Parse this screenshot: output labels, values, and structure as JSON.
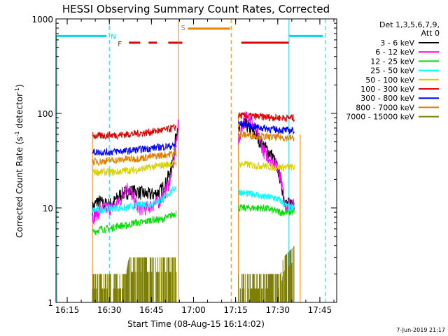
{
  "chart_data": {
    "type": "line",
    "title": "HESSI Observing Summary Count Rates, Corrected",
    "xlabel": "Start Time (08-Aug-15 16:14:02)",
    "ylabel_main": "Corrected Count Rate (s",
    "ylabel_sup1": "-1",
    "ylabel_mid": " detector",
    "ylabel_sup2": "-1",
    "ylabel_end": ")",
    "y_scale": "log",
    "ylim": [
      1,
      1000
    ],
    "xlim": [
      "16:11",
      "17:51"
    ],
    "x_ticks": [
      "16:15",
      "16:30",
      "16:45",
      "17:00",
      "17:15",
      "17:30",
      "17:45"
    ],
    "y_ticks": [
      "1",
      "10",
      "100",
      "1000"
    ],
    "legend_header": [
      "Det 1,3,5,6,7,9,",
      "Att 0"
    ],
    "legend_position": "right",
    "timestamp": "7-Jun-2019 21:17",
    "flags": {
      "n_label": "N",
      "f_label": "F",
      "s_label": "S",
      "night_color": "#00d8e8",
      "flare_color": "#e00000",
      "saa_color": "#f08000"
    },
    "series": [
      {
        "name": "3 - 6 keV",
        "color": "#000000",
        "points": [
          [
            "16:24",
            10
          ],
          [
            "16:26",
            12
          ],
          [
            "16:28",
            11
          ],
          [
            "16:31",
            11
          ],
          [
            "16:34",
            14
          ],
          [
            "16:37",
            15
          ],
          [
            "16:40",
            15
          ],
          [
            "16:43",
            14
          ],
          [
            "16:46",
            14
          ],
          [
            "16:48",
            15
          ],
          [
            "16:50",
            18
          ],
          [
            "16:52",
            26
          ],
          [
            "16:53",
            38
          ],
          [
            "16:54",
            70
          ],
          [
            "16:54.5",
            75
          ]
        ],
        "points2": [
          [
            "17:16",
            62
          ],
          [
            "17:17",
            72
          ],
          [
            "17:18",
            78
          ],
          [
            "17:20",
            70
          ],
          [
            "17:22",
            60
          ],
          [
            "17:24",
            50
          ],
          [
            "17:26",
            42
          ],
          [
            "17:28",
            36
          ],
          [
            "17:30",
            26
          ],
          [
            "17:31",
            20
          ],
          [
            "17:32",
            14
          ],
          [
            "17:33",
            11
          ],
          [
            "17:34",
            11
          ],
          [
            "17:36",
            12
          ]
        ]
      },
      {
        "name": "6 - 12 keV",
        "color": "#ff00ff",
        "points": [
          [
            "16:24",
            8
          ],
          [
            "16:26",
            9
          ],
          [
            "16:28",
            10
          ],
          [
            "16:31",
            10
          ],
          [
            "16:34",
            12
          ],
          [
            "16:36",
            17
          ],
          [
            "16:38",
            14
          ],
          [
            "16:40",
            10
          ],
          [
            "16:43",
            10
          ],
          [
            "16:46",
            11
          ],
          [
            "16:48",
            12
          ],
          [
            "16:50",
            15
          ],
          [
            "16:52",
            22
          ],
          [
            "16:53",
            32
          ],
          [
            "16:54",
            55
          ],
          [
            "16:54.5",
            78
          ]
        ],
        "points2": [
          [
            "17:16",
            50
          ],
          [
            "17:17",
            70
          ],
          [
            "17:19",
            100
          ],
          [
            "17:21",
            80
          ],
          [
            "17:23",
            58
          ],
          [
            "17:25",
            40
          ],
          [
            "17:27",
            34
          ],
          [
            "17:29",
            30
          ],
          [
            "17:31",
            22
          ],
          [
            "17:32",
            14
          ],
          [
            "17:33",
            10
          ],
          [
            "17:34",
            11
          ],
          [
            "17:36",
            11
          ]
        ]
      },
      {
        "name": "12 - 25 keV",
        "color": "#00e000",
        "points": [
          [
            "16:24",
            5.5
          ],
          [
            "16:27",
            6
          ],
          [
            "16:30",
            6
          ],
          [
            "16:33",
            6.5
          ],
          [
            "16:36",
            6.5
          ],
          [
            "16:39",
            7
          ],
          [
            "16:42",
            7
          ],
          [
            "16:45",
            7.5
          ],
          [
            "16:48",
            7.5
          ],
          [
            "16:51",
            8
          ],
          [
            "16:54",
            9
          ]
        ],
        "points2": [
          [
            "17:16",
            10
          ],
          [
            "17:19",
            10
          ],
          [
            "17:22",
            10
          ],
          [
            "17:25",
            10
          ],
          [
            "17:28",
            9.5
          ],
          [
            "17:31",
            9
          ],
          [
            "17:34",
            9
          ],
          [
            "17:36",
            9
          ]
        ]
      },
      {
        "name": "25 - 50 keV",
        "color": "#00ffff",
        "points": [
          [
            "16:24",
            9.5
          ],
          [
            "16:27",
            9.5
          ],
          [
            "16:30",
            10
          ],
          [
            "16:33",
            10
          ],
          [
            "16:36",
            10
          ],
          [
            "16:39",
            10.5
          ],
          [
            "16:42",
            11
          ],
          [
            "16:45",
            11
          ],
          [
            "16:48",
            12
          ],
          [
            "16:50",
            13
          ],
          [
            "16:52",
            15
          ],
          [
            "16:54",
            17
          ]
        ],
        "points2": [
          [
            "17:16",
            15
          ],
          [
            "17:19",
            14
          ],
          [
            "17:22",
            14
          ],
          [
            "17:25",
            13
          ],
          [
            "17:28",
            13
          ],
          [
            "17:31",
            12
          ],
          [
            "17:33",
            10.5
          ],
          [
            "17:34",
            10
          ],
          [
            "17:36",
            10
          ]
        ]
      },
      {
        "name": "50 - 100 keV",
        "color": "#d8d000",
        "points": [
          [
            "16:24",
            24
          ],
          [
            "16:27",
            24
          ],
          [
            "16:30",
            24
          ],
          [
            "16:33",
            24
          ],
          [
            "16:36",
            25
          ],
          [
            "16:39",
            25
          ],
          [
            "16:42",
            26
          ],
          [
            "16:45",
            27
          ],
          [
            "16:48",
            28
          ],
          [
            "16:51",
            29
          ],
          [
            "16:54",
            30
          ]
        ],
        "points2": [
          [
            "17:16",
            29
          ],
          [
            "17:19",
            29
          ],
          [
            "17:22",
            28
          ],
          [
            "17:25",
            28
          ],
          [
            "17:28",
            27
          ],
          [
            "17:31",
            27
          ],
          [
            "17:34",
            27
          ],
          [
            "17:36",
            27
          ]
        ]
      },
      {
        "name": "100 - 300 keV",
        "color": "#e00000",
        "points": [
          [
            "16:24",
            58
          ],
          [
            "16:27",
            58
          ],
          [
            "16:30",
            59
          ],
          [
            "16:33",
            59
          ],
          [
            "16:36",
            60
          ],
          [
            "16:39",
            61
          ],
          [
            "16:42",
            62
          ],
          [
            "16:45",
            64
          ],
          [
            "16:48",
            66
          ],
          [
            "16:51",
            68
          ],
          [
            "16:54",
            72
          ]
        ],
        "points2": [
          [
            "17:16",
            95
          ],
          [
            "17:19",
            94
          ],
          [
            "17:22",
            93
          ],
          [
            "17:25",
            92
          ],
          [
            "17:28",
            91
          ],
          [
            "17:31",
            90
          ],
          [
            "17:34",
            90
          ],
          [
            "17:36",
            90
          ]
        ]
      },
      {
        "name": "300 - 800 keV",
        "color": "#0000ff",
        "points": [
          [
            "16:24",
            39
          ],
          [
            "16:27",
            39
          ],
          [
            "16:30",
            39
          ],
          [
            "16:33",
            40
          ],
          [
            "16:36",
            40
          ],
          [
            "16:39",
            41
          ],
          [
            "16:42",
            42
          ],
          [
            "16:45",
            43
          ],
          [
            "16:48",
            44
          ],
          [
            "16:51",
            45
          ],
          [
            "16:54",
            46
          ]
        ],
        "points2": [
          [
            "17:16",
            78
          ],
          [
            "17:19",
            76
          ],
          [
            "17:22",
            72
          ],
          [
            "17:25",
            70
          ],
          [
            "17:28",
            68
          ],
          [
            "17:31",
            67
          ],
          [
            "17:34",
            66
          ],
          [
            "17:36",
            66
          ]
        ]
      },
      {
        "name": "800 - 7000 keV",
        "color": "#e08000",
        "points": [
          [
            "16:24",
            31
          ],
          [
            "16:27",
            31
          ],
          [
            "16:30",
            32
          ],
          [
            "16:33",
            32
          ],
          [
            "16:36",
            33
          ],
          [
            "16:39",
            33
          ],
          [
            "16:42",
            34
          ],
          [
            "16:45",
            35
          ],
          [
            "16:48",
            36
          ],
          [
            "16:51",
            37
          ],
          [
            "16:54",
            38
          ]
        ],
        "points2": [
          [
            "17:16",
            60
          ],
          [
            "17:19",
            59
          ],
          [
            "17:22",
            58
          ],
          [
            "17:25",
            57
          ],
          [
            "17:28",
            56
          ],
          [
            "17:31",
            56
          ],
          [
            "17:34",
            55
          ],
          [
            "17:36",
            55
          ]
        ]
      },
      {
        "name": "7000 - 15000 keV",
        "color": "#808000",
        "band1": [
          [
            "16:24",
            2
          ],
          [
            "16:36",
            2
          ],
          [
            "16:37",
            3
          ],
          [
            "16:54",
            3
          ]
        ],
        "band2": [
          [
            "17:16",
            2
          ],
          [
            "17:31",
            2
          ],
          [
            "17:32",
            3
          ],
          [
            "17:36",
            4
          ]
        ]
      }
    ]
  }
}
